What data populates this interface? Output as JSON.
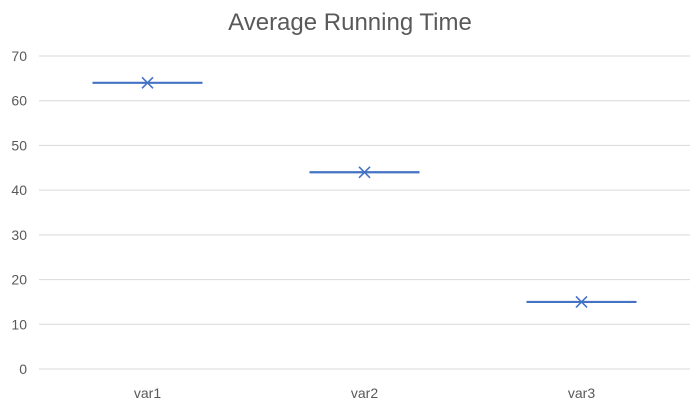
{
  "chart_data": {
    "type": "box",
    "title": "Average Running Time",
    "xlabel": "",
    "ylabel": "",
    "categories": [
      "var1",
      "var2",
      "var3"
    ],
    "values": [
      64,
      44,
      15
    ],
    "ylim": [
      0,
      70
    ],
    "yticks": [
      0,
      10,
      20,
      30,
      40,
      50,
      60,
      70
    ],
    "grid": true,
    "legend": "none",
    "series_color": "#4472c4",
    "marker": "x"
  }
}
